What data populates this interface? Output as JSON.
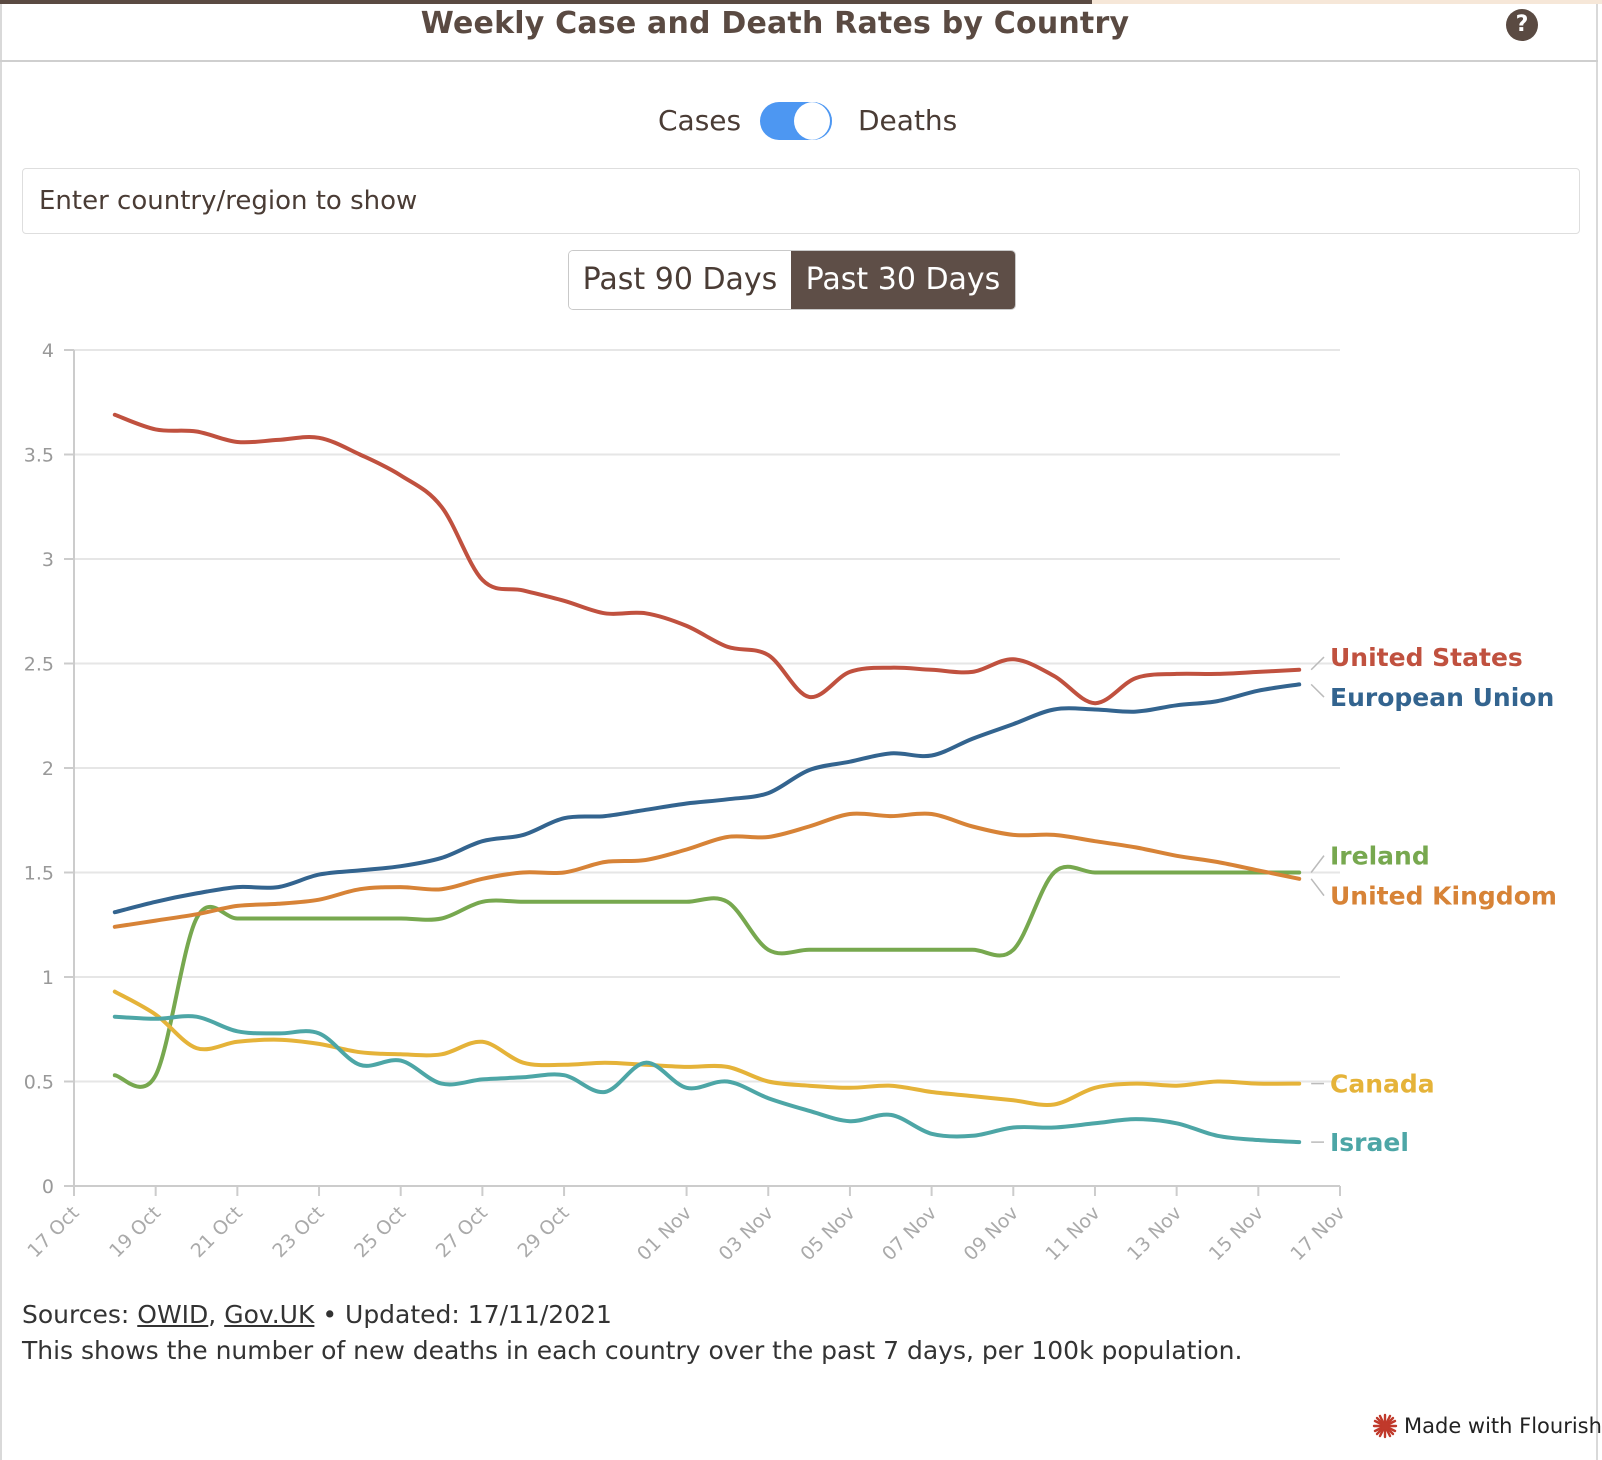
{
  "header": {
    "title": "Weekly Case and Death Rates by Country",
    "help_icon": "question-circle-icon"
  },
  "toggle": {
    "left_label": "Cases",
    "right_label": "Deaths",
    "state": "Deaths",
    "color": "#4d97f2"
  },
  "search": {
    "placeholder": "Enter country/region to show",
    "value": ""
  },
  "range_buttons": {
    "b90": "Past 90 Days",
    "b30": "Past 30 Days",
    "selected": "Past 30 Days"
  },
  "footer": {
    "sources_prefix": "Sources: ",
    "link_owid": "OWID",
    "separator": ", ",
    "link_govuk": "Gov.UK",
    "updated": " • Updated: 17/11/2021",
    "description": "This shows the number of new deaths in each country over the past 7 days, per 100k population.",
    "flourish": "Made with Flourish"
  },
  "chart_data": {
    "type": "line",
    "title": "Weekly Case and Death Rates by Country",
    "xlabel": "",
    "ylabel": "",
    "ylim": [
      0,
      4
    ],
    "yticks": [
      "0",
      "0.5",
      "1",
      "1.5",
      "2",
      "2.5",
      "3",
      "3.5",
      "4"
    ],
    "x_range": [
      "2021-10-17",
      "2021-11-17"
    ],
    "xticks": [
      {
        "date": "2021-10-17",
        "label": "17 Oct"
      },
      {
        "date": "2021-10-19",
        "label": "19 Oct"
      },
      {
        "date": "2021-10-21",
        "label": "21 Oct"
      },
      {
        "date": "2021-10-23",
        "label": "23 Oct"
      },
      {
        "date": "2021-10-25",
        "label": "25 Oct"
      },
      {
        "date": "2021-10-27",
        "label": "27 Oct"
      },
      {
        "date": "2021-10-29",
        "label": "29 Oct"
      },
      {
        "date": "2021-11-01",
        "label": "01 Nov"
      },
      {
        "date": "2021-11-03",
        "label": "03 Nov"
      },
      {
        "date": "2021-11-05",
        "label": "05 Nov"
      },
      {
        "date": "2021-11-07",
        "label": "07 Nov"
      },
      {
        "date": "2021-11-09",
        "label": "09 Nov"
      },
      {
        "date": "2021-11-11",
        "label": "11 Nov"
      },
      {
        "date": "2021-11-13",
        "label": "13 Nov"
      },
      {
        "date": "2021-11-15",
        "label": "15 Nov"
      },
      {
        "date": "2021-11-17",
        "label": "17 Nov"
      }
    ],
    "grid": true,
    "legend": "direct labels at line ends (right)",
    "dates": [
      "2021-10-18",
      "2021-10-19",
      "2021-10-20",
      "2021-10-21",
      "2021-10-22",
      "2021-10-23",
      "2021-10-24",
      "2021-10-25",
      "2021-10-26",
      "2021-10-27",
      "2021-10-28",
      "2021-10-29",
      "2021-10-30",
      "2021-10-31",
      "2021-11-01",
      "2021-11-02",
      "2021-11-03",
      "2021-11-04",
      "2021-11-05",
      "2021-11-06",
      "2021-11-07",
      "2021-11-08",
      "2021-11-09",
      "2021-11-10",
      "2021-11-11",
      "2021-11-12",
      "2021-11-13",
      "2021-11-14",
      "2021-11-15",
      "2021-11-16"
    ],
    "series": [
      {
        "name": "United States",
        "color": "#c0513f",
        "values": [
          3.69,
          3.62,
          3.61,
          3.56,
          3.57,
          3.58,
          3.5,
          3.4,
          3.25,
          2.9,
          2.85,
          2.8,
          2.74,
          2.74,
          2.68,
          2.58,
          2.54,
          2.34,
          2.46,
          2.48,
          2.47,
          2.46,
          2.52,
          2.44,
          2.31,
          2.43,
          2.45,
          2.45,
          2.46,
          2.47
        ]
      },
      {
        "name": "European Union",
        "color": "#33648f",
        "values": [
          1.31,
          1.36,
          1.4,
          1.43,
          1.43,
          1.49,
          1.51,
          1.53,
          1.57,
          1.65,
          1.68,
          1.76,
          1.77,
          1.8,
          1.83,
          1.85,
          1.88,
          1.99,
          2.03,
          2.07,
          2.06,
          2.14,
          2.21,
          2.28,
          2.28,
          2.27,
          2.3,
          2.32,
          2.37,
          2.4
        ]
      },
      {
        "name": "Ireland",
        "color": "#77a84f",
        "values": [
          0.53,
          0.53,
          1.28,
          1.28,
          1.28,
          1.28,
          1.28,
          1.28,
          1.28,
          1.36,
          1.36,
          1.36,
          1.36,
          1.36,
          1.36,
          1.36,
          1.13,
          1.13,
          1.13,
          1.13,
          1.13,
          1.13,
          1.13,
          1.5,
          1.5,
          1.5,
          1.5,
          1.5,
          1.5,
          1.5
        ]
      },
      {
        "name": "United Kingdom",
        "color": "#d78337",
        "values": [
          1.24,
          1.27,
          1.3,
          1.34,
          1.35,
          1.37,
          1.42,
          1.43,
          1.42,
          1.47,
          1.5,
          1.5,
          1.55,
          1.56,
          1.61,
          1.67,
          1.67,
          1.72,
          1.78,
          1.77,
          1.78,
          1.72,
          1.68,
          1.68,
          1.65,
          1.62,
          1.58,
          1.55,
          1.51,
          1.47
        ]
      },
      {
        "name": "Canada",
        "color": "#e5b339",
        "values": [
          0.93,
          0.82,
          0.66,
          0.69,
          0.7,
          0.68,
          0.64,
          0.63,
          0.63,
          0.69,
          0.59,
          0.58,
          0.59,
          0.58,
          0.57,
          0.57,
          0.5,
          0.48,
          0.47,
          0.48,
          0.45,
          0.43,
          0.41,
          0.39,
          0.47,
          0.49,
          0.48,
          0.5,
          0.49,
          0.49
        ]
      },
      {
        "name": "Israel",
        "color": "#4da6a6",
        "values": [
          0.81,
          0.8,
          0.81,
          0.74,
          0.73,
          0.73,
          0.58,
          0.6,
          0.49,
          0.51,
          0.52,
          0.53,
          0.45,
          0.59,
          0.47,
          0.5,
          0.42,
          0.36,
          0.31,
          0.34,
          0.25,
          0.24,
          0.28,
          0.28,
          0.3,
          0.32,
          0.3,
          0.24,
          0.22,
          0.21
        ]
      }
    ]
  }
}
